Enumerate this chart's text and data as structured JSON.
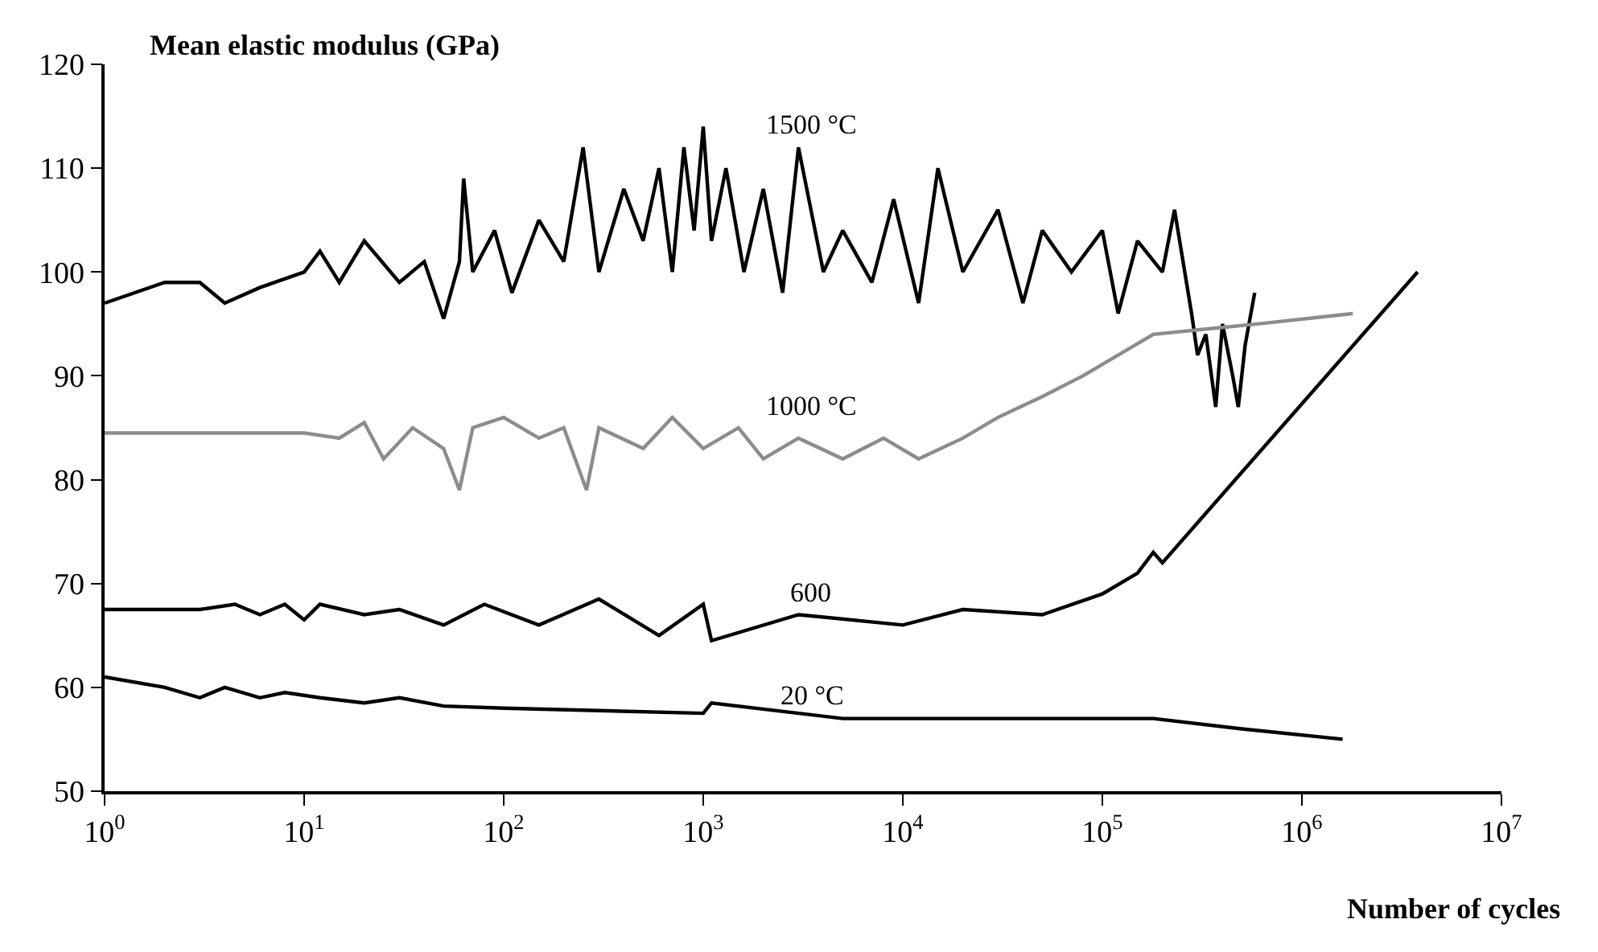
{
  "chart_data": {
    "type": "line",
    "ylabel": "Mean elastic modulus (GPa)",
    "xlabel": "Number of cycles",
    "log": "x",
    "legend": false,
    "marker": "none",
    "line_style": "solid",
    "xlim": [
      1,
      10000000
    ],
    "ylim": [
      50,
      120
    ],
    "xticks": [
      {
        "value": 1,
        "label": "10$^{0}$"
      },
      {
        "value": 10,
        "label": "10$^{1}$"
      },
      {
        "value": 100,
        "label": "10$^{2}$"
      },
      {
        "value": 1000,
        "label": "10$^{3}$"
      },
      {
        "value": 10000,
        "label": "10$^{4}$"
      },
      {
        "value": 100000,
        "label": "10$^{5}$"
      },
      {
        "value": 1000000,
        "label": "10$^{6}$"
      },
      {
        "value": 10000000,
        "label": "10$^{7}$"
      }
    ],
    "yticks": [
      50,
      60,
      70,
      80,
      90,
      100,
      110,
      120
    ],
    "series": [
      {
        "name": "1500 °C",
        "color": "#000000",
        "x": [
          1,
          2,
          3,
          4,
          6,
          10,
          12,
          15,
          20,
          30,
          40,
          50,
          60,
          63,
          70,
          90,
          110,
          150,
          200,
          250,
          300,
          400,
          500,
          600,
          700,
          800,
          900,
          1000,
          1100,
          1300,
          1600,
          2000,
          2500,
          3000,
          4000,
          5000,
          7000,
          9000,
          12000,
          15000,
          20000,
          30000,
          40000,
          50000,
          70000,
          100000,
          120000,
          150000,
          200000,
          230000,
          280000,
          300000,
          330000,
          370000,
          400000,
          450000,
          480000,
          520000,
          580000
        ],
        "values": [
          97,
          99,
          99,
          97,
          98.5,
          100,
          102,
          99,
          103,
          99,
          101,
          95.5,
          101,
          109,
          100,
          104,
          98,
          105,
          101,
          112,
          100,
          108,
          103,
          110,
          100,
          112,
          104,
          114,
          103,
          110,
          100,
          108,
          98,
          112,
          100,
          104,
          99,
          107,
          97,
          110,
          100,
          106,
          97,
          104,
          100,
          104,
          96,
          103,
          100,
          106,
          96,
          92,
          94,
          87,
          95,
          90,
          87,
          93,
          98
        ]
      },
      {
        "name": "1000 °C",
        "color": "#8c8c8c",
        "x": [
          1,
          10,
          15,
          20,
          25,
          35,
          50,
          60,
          70,
          100,
          150,
          200,
          260,
          300,
          500,
          700,
          1000,
          1500,
          2000,
          3000,
          5000,
          8000,
          12000,
          20000,
          30000,
          50000,
          80000,
          120000,
          180000,
          600000,
          1800000
        ],
        "values": [
          84.5,
          84.5,
          84,
          85.5,
          82,
          85,
          83,
          79,
          85,
          86,
          84,
          85,
          79,
          85,
          83,
          86,
          83,
          85,
          82,
          84,
          82,
          84,
          82,
          84,
          86,
          88,
          90,
          92,
          94,
          95,
          96
        ]
      },
      {
        "name": "600",
        "color": "#000000",
        "x": [
          1,
          3,
          4.5,
          6,
          8,
          10,
          12,
          20,
          30,
          50,
          80,
          150,
          300,
          600,
          1000,
          1100,
          3000,
          10000,
          20000,
          50000,
          100000,
          150000,
          180000,
          200000,
          3800000
        ],
        "values": [
          67.5,
          67.5,
          68,
          67,
          68,
          66.5,
          68,
          67,
          67.5,
          66,
          68,
          66,
          68.5,
          65,
          68,
          64.5,
          67,
          66,
          67.5,
          67,
          69,
          71,
          73,
          72,
          100
        ]
      },
      {
        "name": "20 °C",
        "color": "#000000",
        "x": [
          1,
          2,
          3,
          4,
          6,
          8,
          12,
          20,
          30,
          50,
          100,
          1000,
          1100,
          5000,
          50000,
          180000,
          500000,
          1600000
        ],
        "values": [
          61,
          60,
          59,
          60,
          59,
          59.5,
          59,
          58.5,
          59,
          58.2,
          58,
          57.5,
          58.5,
          57,
          57,
          57,
          56,
          55
        ]
      }
    ]
  }
}
